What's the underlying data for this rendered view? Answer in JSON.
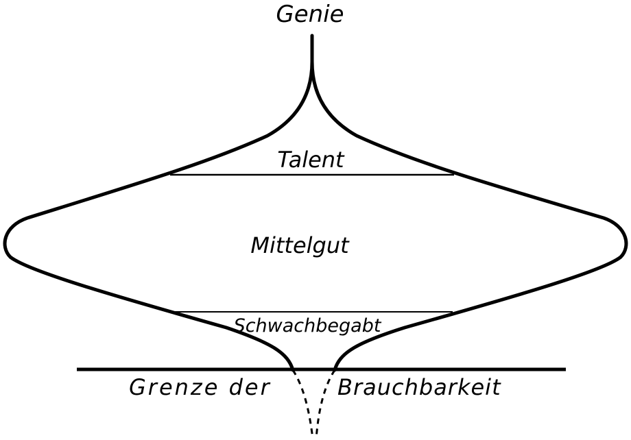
{
  "diagram": {
    "labels": {
      "top": "Genie",
      "talent": "Talent",
      "middle": "Mittelgut",
      "lower": "Schwachbegabt",
      "limit_left": "Grenze der",
      "limit_right": "Brauchbarkeit"
    },
    "colors": {
      "ink": "#000000",
      "paper": "#ffffff"
    }
  }
}
